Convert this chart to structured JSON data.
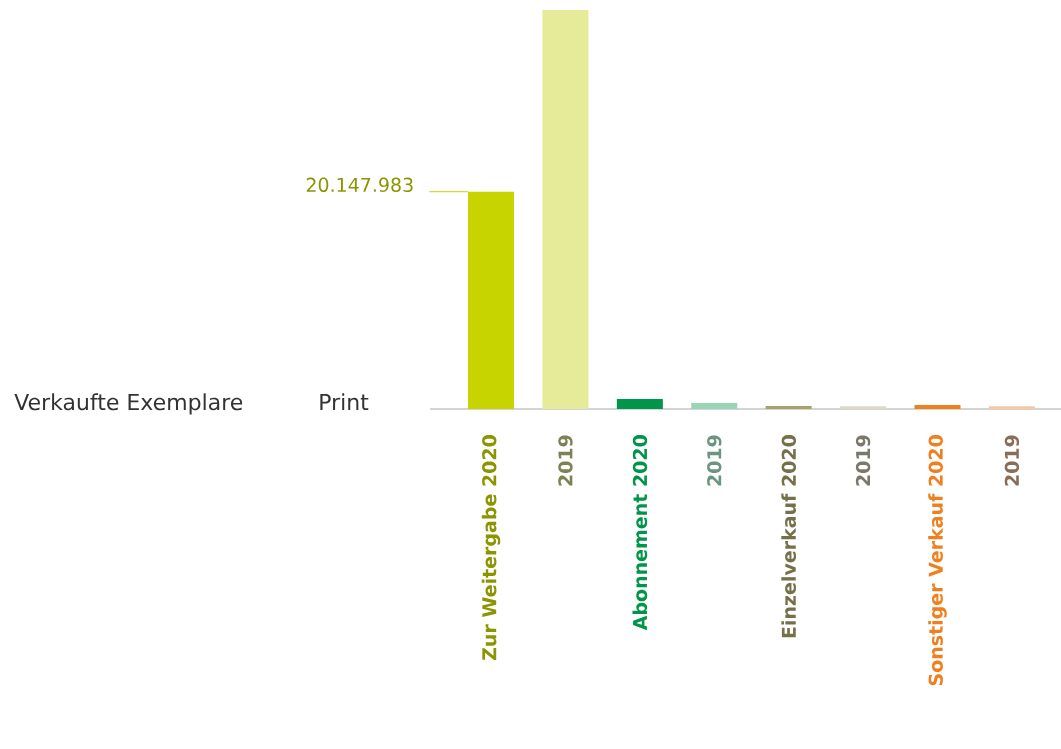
{
  "chart_data": {
    "type": "bar",
    "title": "Verkaufte Exemplare",
    "subtitle": "Print",
    "categories": [
      "Zur Weitergabe  2020",
      "2019",
      "Abonnement  2020",
      "2019",
      "Einzelverkauf  2020",
      "2019",
      "Sonstiger Verkauf  2020",
      "2019"
    ],
    "values": [
      20147983,
      37000000,
      930000,
      560000,
      280000,
      250000,
      370000,
      250000
    ],
    "colors": [
      "#c8d400",
      "#e6eb9a",
      "#009548",
      "#99d5b5",
      "#a9a06a",
      "#ddd9c3",
      "#f07f1e",
      "#f9c6a0"
    ],
    "value_labels": [
      "20.147.983",
      null,
      null,
      null,
      null,
      null,
      null,
      null
    ]
  }
}
